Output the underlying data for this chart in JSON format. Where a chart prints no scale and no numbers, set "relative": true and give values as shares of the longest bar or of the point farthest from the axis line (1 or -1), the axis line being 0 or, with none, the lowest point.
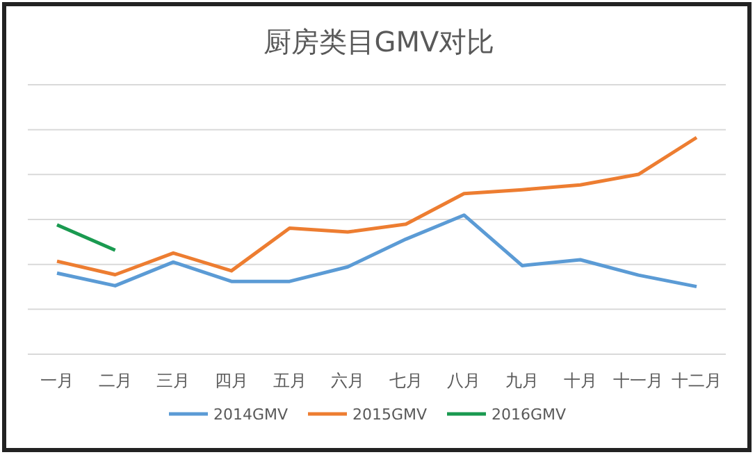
{
  "chart_data": {
    "type": "line",
    "title": "厨房类目GMV对比",
    "relative": true,
    "grid": "y",
    "legend": "bottom",
    "marker": "none",
    "line_style": "solid",
    "categories": [
      "一月",
      "二月",
      "三月",
      "四月",
      "五月",
      "六月",
      "七月",
      "八月",
      "九月",
      "十月",
      "十一月",
      "十二月"
    ],
    "series": [
      {
        "name": "2014GMV",
        "color": "#5b9bd5",
        "values": [
          0.374,
          0.316,
          0.425,
          0.336,
          0.336,
          0.403,
          0.531,
          0.642,
          0.409,
          0.436,
          0.365,
          0.312
        ]
      },
      {
        "name": "2015GMV",
        "color": "#ed7d31",
        "values": [
          0.429,
          0.367,
          0.467,
          0.385,
          0.582,
          0.564,
          0.6,
          0.741,
          0.759,
          0.781,
          0.83,
          1
        ]
      },
      {
        "name": "2016GMV",
        "color": "#1a9a50",
        "values": [
          0.597,
          0.48,
          null,
          null,
          null,
          null,
          null,
          null,
          null,
          null,
          null,
          null
        ]
      }
    ]
  }
}
